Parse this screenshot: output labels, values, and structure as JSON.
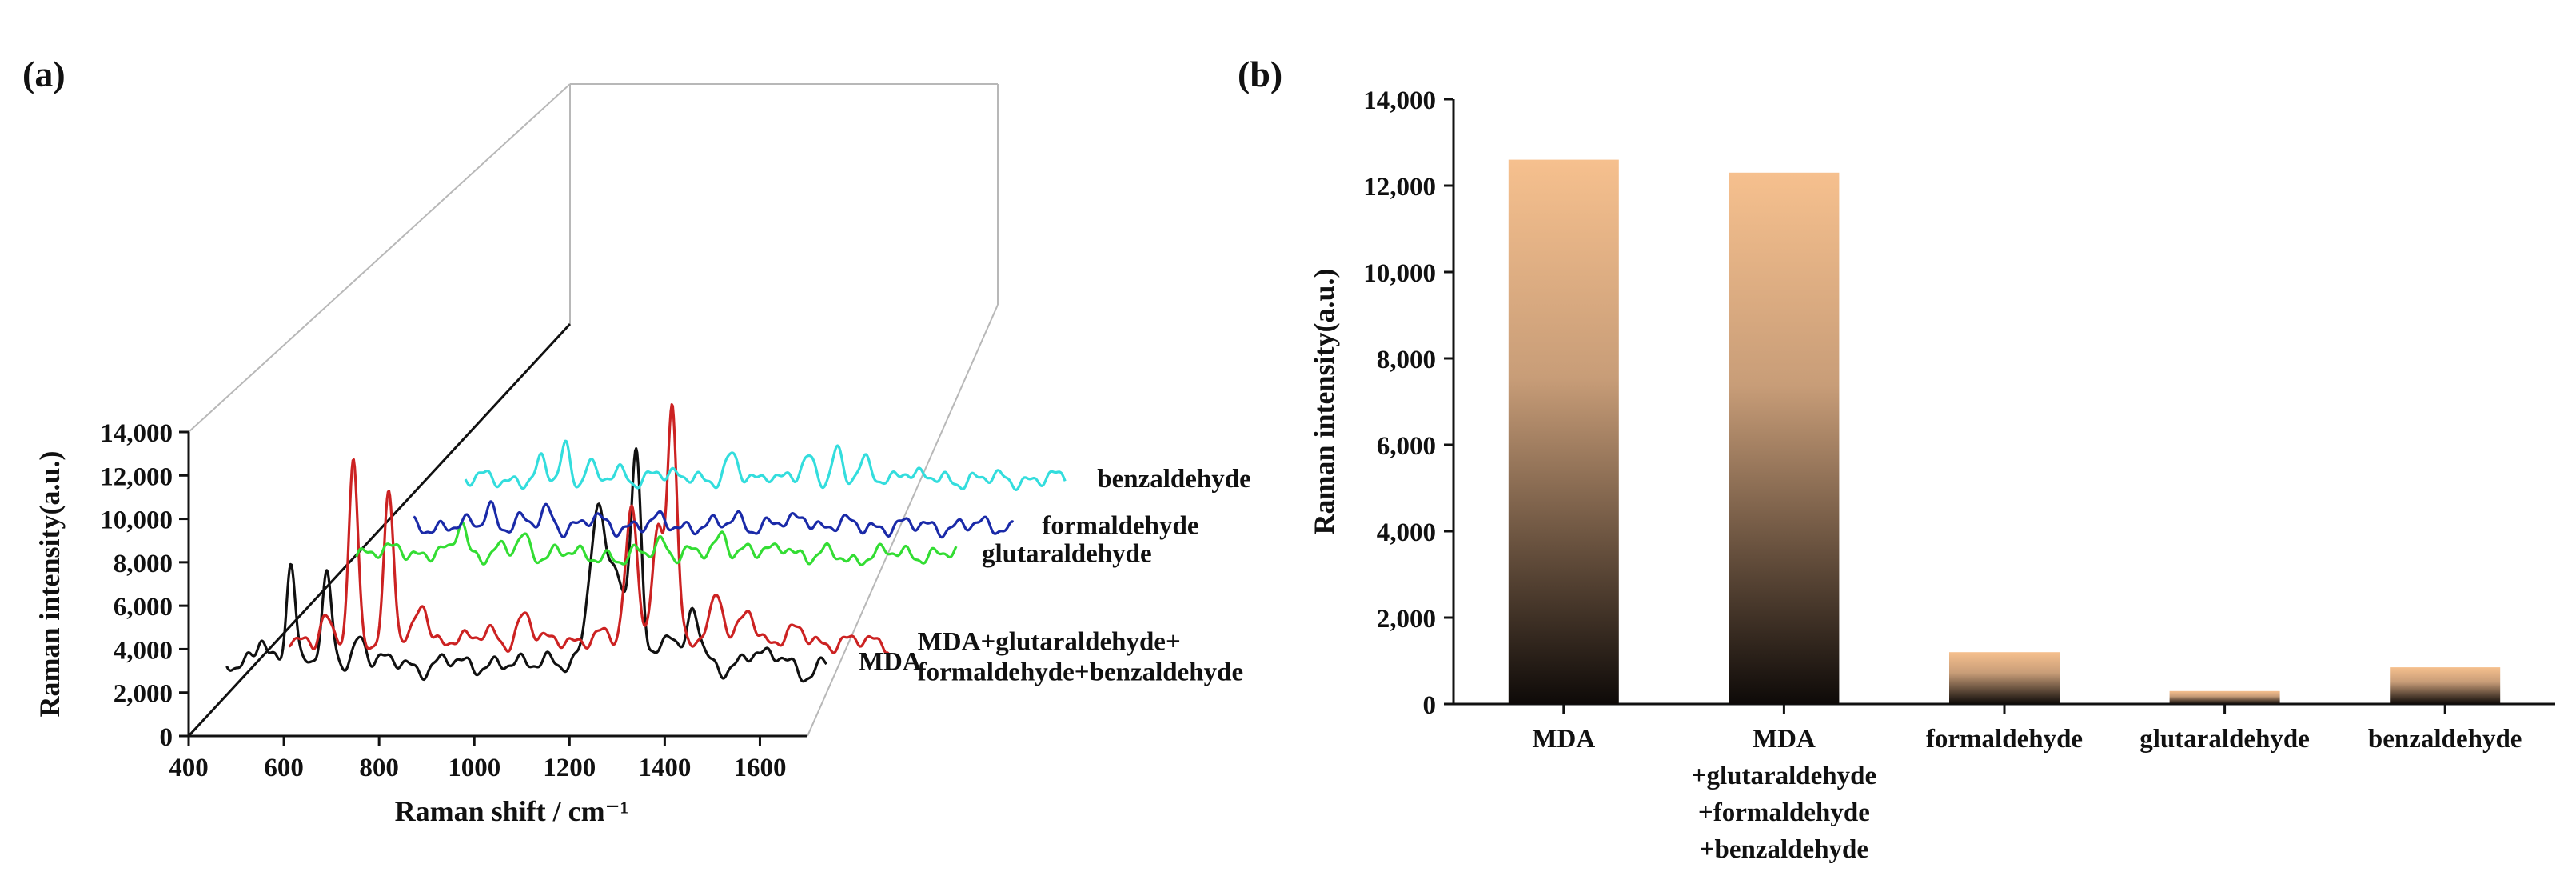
{
  "panels": {
    "a": "(a)",
    "b": "(b)"
  },
  "chart_data": [
    {
      "type": "line",
      "panel": "(a)",
      "title": "",
      "xlabel": "Raman shift / cm⁻¹",
      "ylabel": "Raman intensity(a.u.)",
      "xlim": [
        400,
        1700
      ],
      "ylim": [
        0,
        14000
      ],
      "x_ticks": [
        400,
        600,
        800,
        1000,
        1200,
        1400,
        1600
      ],
      "y_ticks": [
        0,
        2000,
        4000,
        6000,
        8000,
        10000,
        12000,
        14000
      ],
      "y_tick_labels": [
        "0",
        "2,000",
        "4,000",
        "6,000",
        "8,000",
        "10,000",
        "12,000",
        "14,000"
      ],
      "x_range": [
        480,
        1740
      ],
      "series": [
        {
          "name": "MDA",
          "color": "#111111",
          "baseline": 3400,
          "peaks": [
            [
              555,
              2500,
              10
            ],
            [
              615,
              7800,
              9
            ],
            [
              690,
              6200,
              10
            ],
            [
              760,
              2800,
              12
            ],
            [
              820,
              1200,
              15
            ],
            [
              890,
              800,
              18
            ],
            [
              1000,
              1000,
              18
            ],
            [
              1080,
              900,
              16
            ],
            [
              1160,
              1600,
              14
            ],
            [
              1200,
              700,
              14
            ],
            [
              1260,
              10500,
              18
            ],
            [
              1300,
              6500,
              14
            ],
            [
              1340,
              14000,
              11
            ],
            [
              1410,
              3400,
              14
            ],
            [
              1460,
              4600,
              12
            ],
            [
              1520,
              700,
              18
            ],
            [
              1580,
              1800,
              18
            ],
            [
              1640,
              1500,
              20
            ],
            [
              1700,
              500,
              20
            ]
          ]
        },
        {
          "name": "MDA+glutaraldehyde+\nformaldehyde+benzaldehyde",
          "color": "#cc2222",
          "baseline": 1500,
          "peaks": [
            [
              555,
              2300,
              11
            ],
            [
              615,
              11500,
              9
            ],
            [
              690,
              9800,
              10
            ],
            [
              760,
              2800,
              12
            ],
            [
              830,
              900,
              16
            ],
            [
              900,
              1100,
              16
            ],
            [
              975,
              2200,
              14
            ],
            [
              1060,
              800,
              16
            ],
            [
              1130,
              900,
              16
            ],
            [
              1200,
              8700,
              13
            ],
            [
              1255,
              7000,
              12
            ],
            [
              1285,
              14800,
              10
            ],
            [
              1350,
              1200,
              14
            ],
            [
              1380,
              3400,
              12
            ],
            [
              1445,
              2600,
              14
            ],
            [
              1500,
              700,
              16
            ],
            [
              1550,
              1200,
              16
            ]
          ]
        },
        {
          "name": "glutaraldehyde",
          "color": "#33dd33",
          "baseline": 2500,
          "peaks": [
            [
              570,
              1400,
              12
            ],
            [
              600,
              900,
              10
            ],
            [
              700,
              3000,
              10
            ],
            [
              780,
              1100,
              12
            ],
            [
              830,
              1900,
              12
            ],
            [
              900,
              1000,
              14
            ],
            [
              960,
              700,
              14
            ],
            [
              1040,
              500,
              16
            ],
            [
              1120,
              1700,
              13
            ],
            [
              1180,
              900,
              13
            ],
            [
              1250,
              2200,
              12
            ],
            [
              1300,
              1200,
              12
            ],
            [
              1380,
              1500,
              14
            ],
            [
              1440,
              700,
              16
            ],
            [
              1520,
              500,
              16
            ]
          ]
        },
        {
          "name": "formaldehyde",
          "color": "#1a2aa8",
          "baseline": 1200,
          "peaks": [
            [
              640,
              1800,
              10
            ],
            [
              700,
              700,
              12
            ],
            [
              760,
              1400,
              12
            ],
            [
              860,
              800,
              14
            ],
            [
              950,
              500,
              16
            ],
            [
              1000,
              700,
              14
            ],
            [
              1080,
              500,
              16
            ],
            [
              1160,
              900,
              14
            ],
            [
              1240,
              600,
              14
            ],
            [
              1300,
              1100,
              14
            ],
            [
              1380,
              500,
              16
            ]
          ]
        },
        {
          "name": "benzaldehyde",
          "color": "#33dddd",
          "baseline": 1000,
          "peaks": [
            [
              640,
              1300,
              9
            ],
            [
              690,
              2400,
              9
            ],
            [
              740,
              1400,
              9
            ],
            [
              810,
              700,
              12
            ],
            [
              880,
              900,
              12
            ],
            [
              960,
              700,
              12
            ],
            [
              1040,
              1600,
              12
            ],
            [
              1120,
              900,
              12
            ],
            [
              1200,
              1500,
              12
            ],
            [
              1260,
              2300,
              10
            ],
            [
              1320,
              1200,
              12
            ],
            [
              1400,
              1000,
              14
            ],
            [
              1470,
              400,
              16
            ]
          ]
        }
      ]
    },
    {
      "type": "bar",
      "panel": "(b)",
      "title": "",
      "xlabel": "",
      "ylabel": "Raman intensity(a.u.)",
      "ylim": [
        0,
        14000
      ],
      "y_ticks": [
        0,
        2000,
        4000,
        6000,
        8000,
        10000,
        12000,
        14000
      ],
      "y_tick_labels": [
        "0",
        "2,000",
        "4,000",
        "6,000",
        "8,000",
        "10,000",
        "12,000",
        "14,000"
      ],
      "categories": [
        [
          "MDA"
        ],
        [
          "MDA",
          "+glutaraldehyde",
          "+formaldehyde",
          "+benzaldehyde"
        ],
        [
          "formaldehyde"
        ],
        [
          "glutaraldehyde"
        ],
        [
          "benzaldehyde"
        ]
      ],
      "values": [
        12600,
        12300,
        1200,
        300,
        850
      ],
      "colors": {
        "top": "#f6c08e",
        "bottom": "#0e0a08"
      }
    }
  ]
}
